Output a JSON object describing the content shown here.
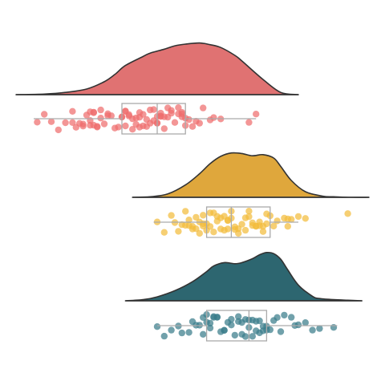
{
  "chart_data": {
    "type": "raincloud",
    "title": "",
    "xlabel": "",
    "ylabel": "",
    "axes_visible": false,
    "grid": false,
    "legend": "none",
    "xlim": [
      0,
      100
    ],
    "outline_color": "#333333",
    "box_color": "#aaaaaa",
    "series": [
      {
        "color": "#e07272",
        "point_color": "#ef6e6e",
        "density": {
          "x": [
            0,
            8,
            14,
            20,
            25,
            28,
            31,
            36,
            38,
            42,
            45,
            48,
            52,
            55,
            58,
            62,
            64,
            70,
            75,
            80
          ],
          "y": [
            0,
            0.01,
            0.04,
            0.1,
            0.23,
            0.36,
            0.52,
            0.68,
            0.74,
            0.81,
            0.87,
            0.9,
            0.92,
            0.89,
            0.84,
            0.7,
            0.6,
            0.27,
            0.04,
            0
          ]
        },
        "box": {
          "min": 5,
          "q1": 30,
          "median": 40,
          "q3": 48,
          "max": 68
        },
        "points": [
          6,
          8,
          10,
          12,
          14,
          16,
          16,
          17,
          18,
          19,
          19,
          20,
          21,
          21,
          21,
          22,
          22,
          22,
          23,
          23,
          24,
          24,
          25,
          26,
          26,
          27,
          28,
          29,
          30,
          30,
          31,
          31,
          31,
          32,
          32,
          33,
          33,
          34,
          34,
          35,
          35,
          35,
          36,
          36,
          37,
          37,
          38,
          38,
          39,
          39,
          40,
          40,
          40,
          41,
          41,
          41,
          42,
          42,
          43,
          43,
          44,
          44,
          45,
          46,
          46,
          47,
          47,
          47,
          48,
          48,
          49,
          50,
          51,
          52,
          53,
          55,
          56,
          58,
          66,
          68
        ]
      },
      {
        "color": "#dfa73c",
        "point_color": "#f2bd3d",
        "density": {
          "x": [
            33,
            38,
            43,
            48,
            52,
            55,
            58,
            61,
            64,
            67,
            70,
            73,
            75,
            78,
            82,
            87,
            90,
            95,
            100
          ],
          "y": [
            0,
            0.01,
            0.06,
            0.22,
            0.42,
            0.6,
            0.73,
            0.79,
            0.78,
            0.74,
            0.76,
            0.7,
            0.55,
            0.3,
            0.1,
            0.02,
            0.01,
            0,
            0
          ]
        },
        "box": {
          "min": 39,
          "q1": 54,
          "median": 61,
          "q3": 72,
          "max": 80
        },
        "points": [
          40,
          42,
          44,
          45,
          46,
          47,
          48,
          48,
          49,
          49,
          50,
          50,
          51,
          51,
          52,
          52,
          53,
          53,
          53,
          54,
          54,
          55,
          55,
          56,
          56,
          57,
          57,
          58,
          58,
          59,
          59,
          60,
          60,
          60,
          61,
          61,
          62,
          62,
          63,
          63,
          64,
          65,
          65,
          66,
          66,
          67,
          67,
          68,
          68,
          69,
          69,
          70,
          70,
          71,
          71,
          72,
          73,
          74,
          76,
          77,
          77,
          78,
          80,
          82,
          94
        ]
      },
      {
        "color": "#2d6670",
        "point_color": "#3a7d8b",
        "density": {
          "x": [
            31,
            36,
            40,
            45,
            50,
            54,
            56,
            59,
            62,
            64,
            67,
            69,
            71,
            73,
            75,
            77,
            80,
            84,
            86,
            90,
            94,
            98
          ],
          "y": [
            0,
            0.02,
            0.07,
            0.18,
            0.34,
            0.52,
            0.62,
            0.68,
            0.66,
            0.68,
            0.75,
            0.82,
            0.86,
            0.84,
            0.74,
            0.55,
            0.28,
            0.08,
            0.04,
            0.02,
            0.01,
            0
          ]
        },
        "box": {
          "min": 40,
          "q1": 54,
          "median": 66,
          "q3": 71,
          "max": 91
        },
        "points": [
          40,
          42,
          44,
          46,
          47,
          49,
          50,
          51,
          52,
          53,
          53,
          54,
          54,
          55,
          55,
          56,
          56,
          57,
          57,
          58,
          59,
          59,
          60,
          61,
          61,
          62,
          63,
          63,
          64,
          64,
          65,
          65,
          66,
          66,
          67,
          67,
          68,
          68,
          69,
          69,
          70,
          70,
          71,
          71,
          72,
          73,
          74,
          75,
          76,
          78,
          79,
          80,
          82,
          84,
          86,
          90
        ]
      }
    ]
  }
}
